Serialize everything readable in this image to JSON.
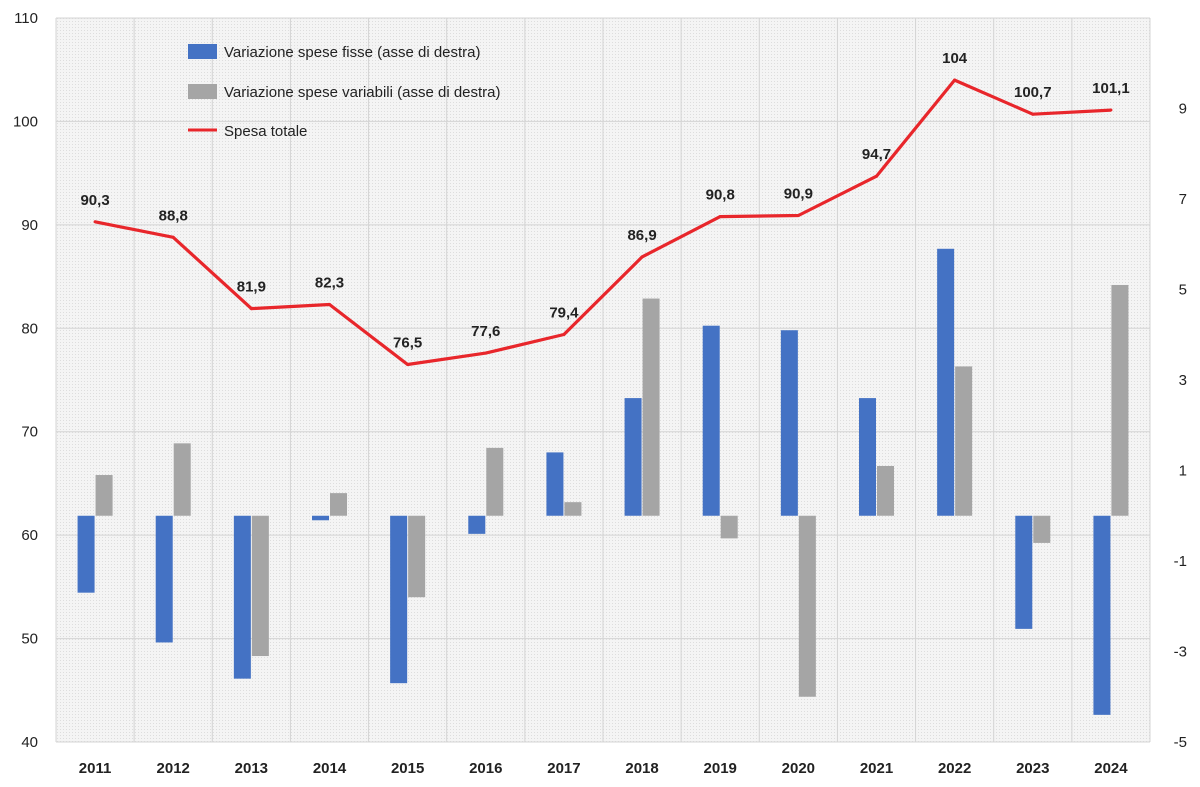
{
  "chart_data": {
    "type": "bar",
    "categories": [
      "2011",
      "2012",
      "2013",
      "2014",
      "2015",
      "2016",
      "2017",
      "2018",
      "2019",
      "2020",
      "2021",
      "2022",
      "2023",
      "2024"
    ],
    "series": [
      {
        "name": "Variazione spese fisse (asse di destra)",
        "axis": "right",
        "kind": "bar",
        "color": "#4472C4",
        "values": [
          -1.7,
          -2.8,
          -3.6,
          -0.1,
          -3.7,
          -0.4,
          1.4,
          2.6,
          4.2,
          4.1,
          2.6,
          5.9,
          -2.5,
          -4.4
        ]
      },
      {
        "name": "Variazione spese variabili (asse di destra)",
        "axis": "right",
        "kind": "bar",
        "color": "#A5A5A5",
        "values": [
          0.9,
          1.6,
          -3.1,
          0.5,
          -1.8,
          1.5,
          0.3,
          4.8,
          -0.5,
          -4.0,
          1.1,
          3.3,
          -0.6,
          5.1
        ]
      },
      {
        "name": "Spesa totale",
        "axis": "left",
        "kind": "line",
        "color": "#E8262B",
        "values": [
          90.3,
          88.8,
          81.9,
          82.3,
          76.5,
          77.6,
          79.4,
          86.9,
          90.8,
          90.9,
          94.7,
          104,
          100.7,
          101.1
        ],
        "labels": [
          "90,3",
          "88,8",
          "81,9",
          "82,3",
          "76,5",
          "77,6",
          "79,4",
          "86,9",
          "90,8",
          "90,9",
          "94,7",
          "104",
          "100,7",
          "101,1"
        ]
      }
    ],
    "left_axis": {
      "min": 40,
      "max": 110,
      "ticks": [
        "40",
        "50",
        "60",
        "70",
        "80",
        "90",
        "100",
        "110"
      ]
    },
    "right_axis": {
      "min": -5,
      "max": 11,
      "ticks": [
        "-5",
        "-3",
        "-1",
        "1",
        "3",
        "5",
        "7",
        "9"
      ]
    },
    "legend_position": "top-left",
    "grid": true
  }
}
